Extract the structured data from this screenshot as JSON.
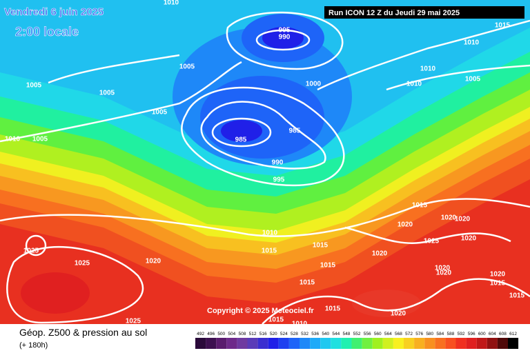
{
  "header": {
    "date": "Vendredi 6 juin 2025",
    "time": "2:00 locale",
    "run": "Run ICON 12 Z du Jeudi 29 mai 2025"
  },
  "copyright": "Copyright © 2025 Meteociel.fr",
  "legend": {
    "title": "Géop. Z500 & pression au sol",
    "subtitle": "(+ 180h)",
    "ticks": [
      492,
      496,
      500,
      504,
      508,
      512,
      516,
      520,
      524,
      528,
      532,
      536,
      540,
      544,
      548,
      552,
      556,
      560,
      564,
      568,
      572,
      576,
      580,
      584,
      588,
      592,
      596,
      600,
      604,
      608,
      612
    ],
    "colors": [
      "#2a0a3a",
      "#3d1050",
      "#5a1c6e",
      "#6e2a8a",
      "#6f3aa0",
      "#5a3cb8",
      "#3a2ed0",
      "#2020e8",
      "#1e40f0",
      "#1e64f8",
      "#1e88f8",
      "#1eaaf8",
      "#20c8f0",
      "#20e0e0",
      "#20f0b0",
      "#40f070",
      "#70f040",
      "#a0f020",
      "#d0f020",
      "#f8f020",
      "#f8d020",
      "#f8b020",
      "#f89020",
      "#f87020",
      "#f85020",
      "#f03020",
      "#e02020",
      "#c01818",
      "#901010",
      "#500808",
      "#000000"
    ]
  },
  "isobar_labels": [
    1010,
    1015,
    995,
    990,
    1010,
    1005,
    1010,
    1005,
    1000,
    1005,
    1010,
    1005,
    1005,
    985,
    1010,
    1005,
    985,
    990,
    995,
    1015,
    1020,
    1020,
    1020,
    1010,
    1025,
    1020,
    1015,
    1025,
    1015,
    1020,
    1015,
    1025,
    1020,
    1020,
    1020,
    1020,
    1015,
    1015,
    1015,
    1015,
    1020,
    1015,
    1010,
    1025
  ]
}
